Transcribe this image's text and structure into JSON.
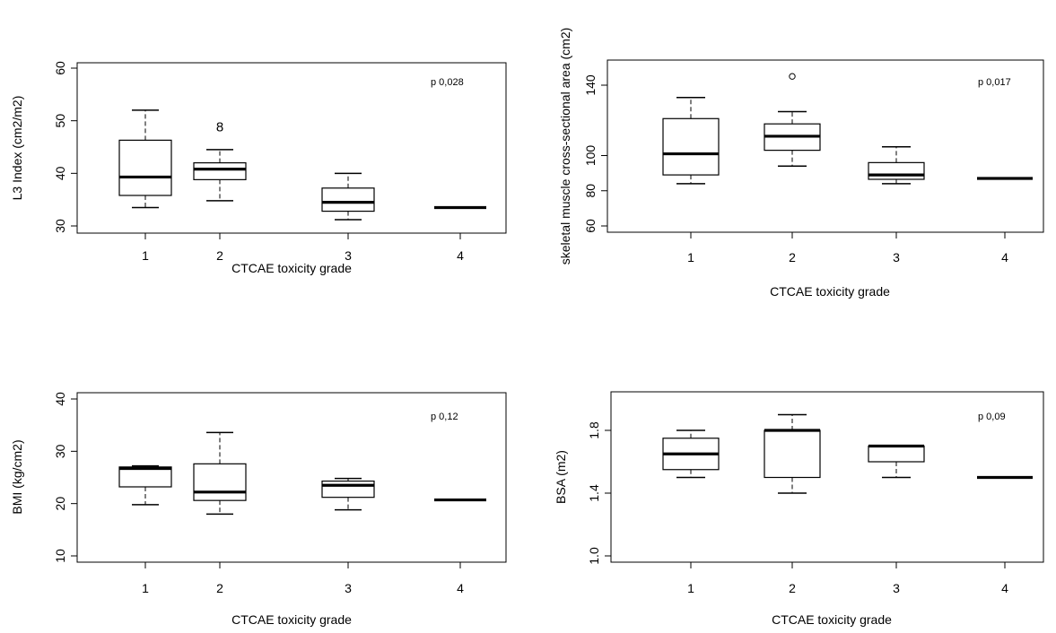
{
  "chart_data": [
    {
      "type": "boxplot",
      "xlabel": "CTCAE toxicity grade",
      "ylabel": "L3 Index (cm2/m2)",
      "annotation": "p 0,028",
      "categories": [
        "1",
        "2",
        "3",
        "4"
      ],
      "yticks": [
        30,
        40,
        50,
        60
      ],
      "ylim": [
        29,
        61
      ],
      "boxes": [
        {
          "category": "1",
          "whisker_low": 33.5,
          "q1": 35.8,
          "median": 39.3,
          "q3": 46.3,
          "whisker_high": 52
        },
        {
          "category": "2",
          "whisker_low": 34.8,
          "q1": 38.8,
          "median": 40.8,
          "q3": 42,
          "whisker_high": 44.5
        },
        {
          "category": "3",
          "whisker_low": 31.2,
          "q1": 32.8,
          "median": 34.5,
          "q3": 37.2,
          "whisker_high": 40
        },
        {
          "category": "4",
          "whisker_low": 33.5,
          "q1": 33.5,
          "median": 33.5,
          "q3": 33.5,
          "whisker_high": 33.5
        }
      ],
      "outliers": [
        {
          "category": "2",
          "value": 48.8,
          "symbol": "8"
        }
      ]
    },
    {
      "type": "boxplot",
      "xlabel": "CTCAE toxicity grade",
      "ylabel": "skeletal muscle cross-sectional area (cm2)",
      "annotation": "p 0,017",
      "categories": [
        "1",
        "2",
        "3",
        "4"
      ],
      "yticks": [
        60,
        80,
        100,
        140
      ],
      "ylim": [
        55,
        152
      ],
      "boxes": [
        {
          "category": "1",
          "whisker_low": 84,
          "q1": 89,
          "median": 101,
          "q3": 121,
          "whisker_high": 133
        },
        {
          "category": "2",
          "whisker_low": 94,
          "q1": 103,
          "median": 111,
          "q3": 118,
          "whisker_high": 125
        },
        {
          "category": "3",
          "whisker_low": 84,
          "q1": 86.5,
          "median": 89,
          "q3": 96,
          "whisker_high": 105
        },
        {
          "category": "4",
          "whisker_low": 87,
          "q1": 87,
          "median": 87,
          "q3": 87,
          "whisker_high": 87
        }
      ],
      "outliers": [
        {
          "category": "2",
          "value": 145,
          "symbol": "o"
        }
      ]
    },
    {
      "type": "boxplot",
      "xlabel": "CTCAE toxicity grade",
      "ylabel": "BMI (kg/cm2)",
      "annotation": "p 0,12",
      "categories": [
        "1",
        "2",
        "3",
        "4"
      ],
      "yticks": [
        10,
        20,
        30,
        40
      ],
      "ylim": [
        9,
        41
      ],
      "boxes": [
        {
          "category": "1",
          "whisker_low": 19.8,
          "q1": 23.2,
          "median": 26.7,
          "q3": 27,
          "whisker_high": 27.2
        },
        {
          "category": "2",
          "whisker_low": 18,
          "q1": 20.6,
          "median": 22.2,
          "q3": 27.6,
          "whisker_high": 33.6
        },
        {
          "category": "3",
          "whisker_low": 18.8,
          "q1": 21.2,
          "median": 23.5,
          "q3": 24.3,
          "whisker_high": 24.8
        },
        {
          "category": "4",
          "whisker_low": 20.7,
          "q1": 20.7,
          "median": 20.7,
          "q3": 20.7,
          "whisker_high": 20.7
        }
      ],
      "outliers": []
    },
    {
      "type": "boxplot",
      "xlabel": "CTCAE toxicity grade",
      "ylabel": "BSA  (m2)",
      "annotation": "p 0,09",
      "categories": [
        "1",
        "2",
        "3",
        "4"
      ],
      "yticks": [
        1.0,
        1.4,
        1.8
      ],
      "yticklabels": [
        "1.0",
        "1.4",
        "1.8"
      ],
      "ylim": [
        0.98,
        1.97
      ],
      "boxes": [
        {
          "category": "1",
          "whisker_low": 1.5,
          "q1": 1.55,
          "median": 1.65,
          "q3": 1.75,
          "whisker_high": 1.8
        },
        {
          "category": "2",
          "whisker_low": 1.4,
          "q1": 1.5,
          "median": 1.8,
          "q3": 1.8,
          "whisker_high": 1.9
        },
        {
          "category": "3",
          "whisker_low": 1.5,
          "q1": 1.6,
          "median": 1.7,
          "q3": 1.7,
          "whisker_high": 1.7
        },
        {
          "category": "4",
          "whisker_low": 1.5,
          "q1": 1.5,
          "median": 1.5,
          "q3": 1.5,
          "whisker_high": 1.5
        }
      ],
      "outliers": []
    }
  ]
}
